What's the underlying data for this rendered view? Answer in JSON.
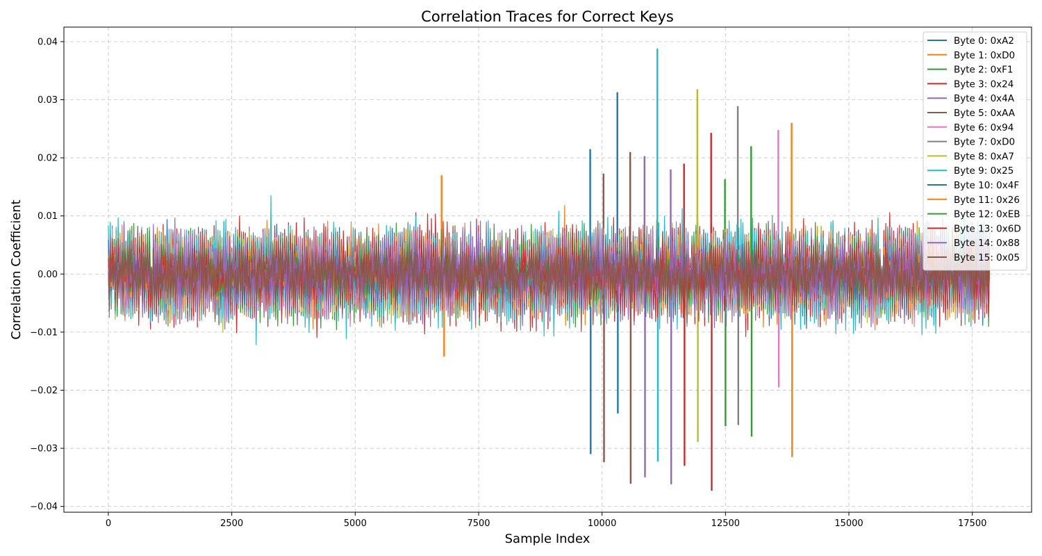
{
  "chart_data": {
    "type": "line",
    "title": "Correlation Traces for Correct Keys",
    "xlabel": "Sample Index",
    "ylabel": "Correlation Coefficient",
    "xlim": [
      -900,
      18700
    ],
    "ylim": [
      -0.041,
      0.0425
    ],
    "xticks": [
      0,
      2500,
      5000,
      7500,
      10000,
      12500,
      15000,
      17500
    ],
    "xtick_labels": [
      "0",
      "2500",
      "5000",
      "7500",
      "10000",
      "12500",
      "15000",
      "17500"
    ],
    "yticks": [
      -0.04,
      -0.03,
      -0.02,
      -0.01,
      0.0,
      0.01,
      0.02,
      0.03,
      0.04
    ],
    "ytick_labels": [
      "−0.04",
      "−0.03",
      "−0.02",
      "−0.01",
      "0.00",
      "0.01",
      "0.02",
      "0.03",
      "0.04"
    ],
    "grid": true,
    "legend_position": "top-right",
    "x_range": [
      0,
      17850
    ],
    "series": [
      {
        "name": "Byte 0: 0xA2",
        "color": "#1f77b4",
        "noise_band": [
          -0.01,
          0.01
        ],
        "peaks": [
          [
            9760,
            0.0215
          ],
          [
            9770,
            -0.031
          ]
        ]
      },
      {
        "name": "Byte 1: 0xD0",
        "color": "#ff7f0e",
        "noise_band": [
          -0.011,
          0.011
        ],
        "peaks": [
          [
            6750,
            0.017
          ],
          [
            6800,
            -0.0142
          ]
        ]
      },
      {
        "name": "Byte 2: 0xF1",
        "color": "#2ca02c",
        "noise_band": [
          -0.011,
          0.011
        ],
        "peaks": [
          [
            12490,
            0.0163
          ],
          [
            12500,
            -0.0262
          ]
        ]
      },
      {
        "name": "Byte 3: 0x24",
        "color": "#d62728",
        "noise_band": [
          -0.012,
          0.012
        ],
        "peaks": [
          [
            12210,
            0.0243
          ],
          [
            12220,
            -0.0373
          ]
        ]
      },
      {
        "name": "Byte 4: 0x4A",
        "color": "#9467bd",
        "noise_band": [
          -0.01,
          0.01
        ],
        "peaks": [
          [
            10860,
            0.0203
          ],
          [
            10870,
            -0.035
          ]
        ]
      },
      {
        "name": "Byte 5: 0xAA",
        "color": "#8c564b",
        "noise_band": [
          -0.009,
          0.009
        ],
        "peaks": [
          [
            10030,
            0.0173
          ],
          [
            10040,
            -0.0324
          ]
        ]
      },
      {
        "name": "Byte 6: 0x94",
        "color": "#e377c2",
        "noise_band": [
          -0.009,
          0.009
        ],
        "peaks": [
          [
            13570,
            0.0248
          ],
          [
            13580,
            -0.0195
          ]
        ]
      },
      {
        "name": "Byte 7: 0xD0",
        "color": "#7f7f7f",
        "noise_band": [
          -0.009,
          0.009
        ],
        "peaks": [
          [
            12750,
            0.0289
          ],
          [
            12760,
            -0.026
          ]
        ]
      },
      {
        "name": "Byte 8: 0xA7",
        "color": "#bcbd22",
        "noise_band": [
          -0.01,
          0.01
        ],
        "peaks": [
          [
            11930,
            0.0318
          ],
          [
            11940,
            -0.0289
          ]
        ]
      },
      {
        "name": "Byte 9: 0x25",
        "color": "#17becf",
        "noise_band": [
          -0.0125,
          0.0125
        ],
        "peaks": [
          [
            11120,
            0.0388
          ],
          [
            11130,
            -0.0323
          ]
        ]
      },
      {
        "name": "Byte 10: 0x4F",
        "color": "#1f77b4",
        "noise_band": [
          -0.009,
          0.009
        ],
        "peaks": [
          [
            10310,
            0.0313
          ],
          [
            10320,
            -0.024
          ]
        ]
      },
      {
        "name": "Byte 11: 0x26",
        "color": "#ff7f0e",
        "noise_band": [
          -0.009,
          0.009
        ],
        "peaks": [
          [
            13840,
            0.026
          ],
          [
            13850,
            -0.0315
          ]
        ]
      },
      {
        "name": "Byte 12: 0xEB",
        "color": "#2ca02c",
        "noise_band": [
          -0.009,
          0.009
        ],
        "peaks": [
          [
            13020,
            0.022
          ],
          [
            13030,
            -0.028
          ]
        ]
      },
      {
        "name": "Byte 13: 0x6D",
        "color": "#d62728",
        "noise_band": [
          -0.01,
          0.01
        ],
        "peaks": [
          [
            11660,
            0.019
          ],
          [
            11670,
            -0.033
          ]
        ]
      },
      {
        "name": "Byte 14: 0x88",
        "color": "#9467bd",
        "noise_band": [
          -0.011,
          0.011
        ],
        "peaks": [
          [
            11390,
            0.018
          ],
          [
            11400,
            -0.0362
          ]
        ]
      },
      {
        "name": "Byte 15: 0x05",
        "color": "#8c564b",
        "noise_band": [
          -0.0085,
          0.0085
        ],
        "peaks": [
          [
            10570,
            0.021
          ],
          [
            10580,
            -0.0361
          ]
        ]
      }
    ]
  }
}
